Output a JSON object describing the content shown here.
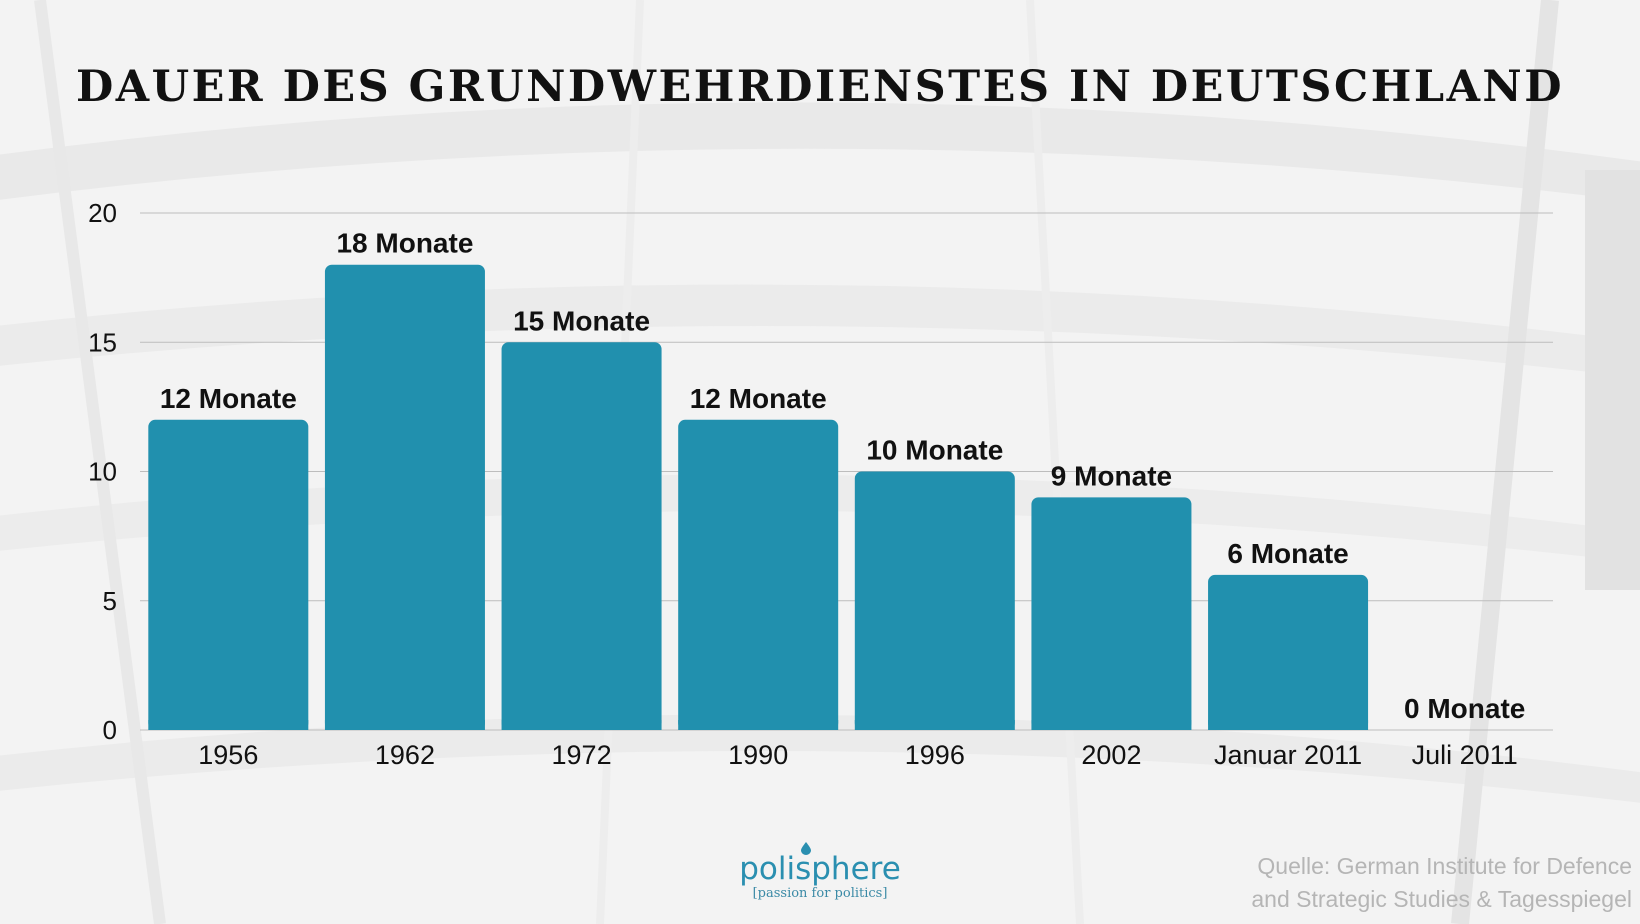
{
  "title": "DAUER DES GRUNDWEHRDIENSTES IN DEUTSCHLAND",
  "logo": {
    "name": "polisphere",
    "tagline": "[passion for politics]"
  },
  "source": {
    "line1": "Quelle: German Institute for Defence",
    "line2": "and Strategic Studies & Tagesspiegel"
  },
  "colors": {
    "bar": "#2190ae",
    "gridline": "#bdbdbd",
    "text": "#111111",
    "logo": "#2a8fb0"
  },
  "chart_data": {
    "type": "bar",
    "title": "DAUER DES GRUNDWEHRDIENSTES IN DEUTSCHLAND",
    "categories": [
      "1956",
      "1962",
      "1972",
      "1990",
      "1996",
      "2002",
      "Januar 2011",
      "Juli 2011"
    ],
    "values": [
      12,
      18,
      15,
      12,
      10,
      9,
      6,
      0
    ],
    "data_labels": [
      "12 Monate",
      "18 Monate",
      "15 Monate",
      "12 Monate",
      "10 Monate",
      "9 Monate",
      "6 Monate",
      "0 Monate"
    ],
    "yticks": [
      0,
      5,
      10,
      15,
      20
    ],
    "ylim": [
      0,
      20
    ],
    "xlabel": "",
    "ylabel": "",
    "grid": true,
    "legend": "none"
  }
}
